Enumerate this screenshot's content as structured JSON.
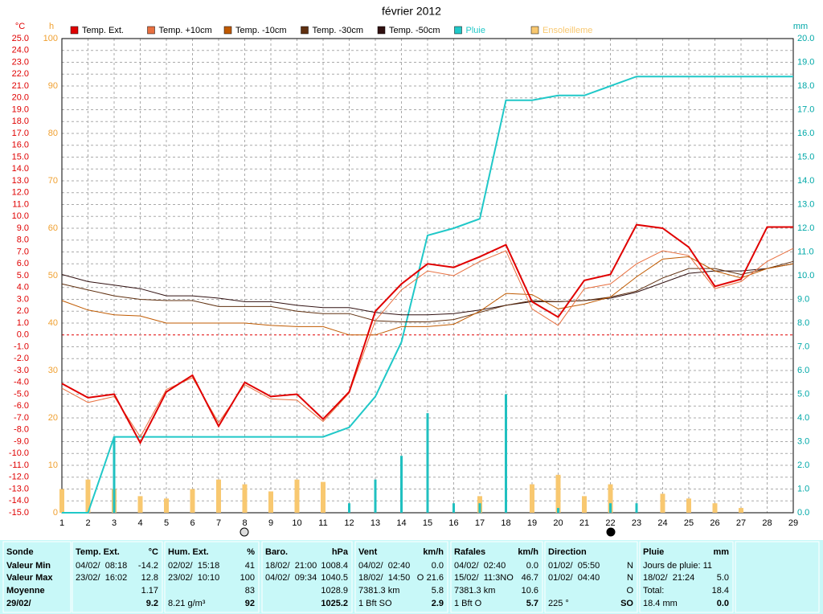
{
  "chart_data": {
    "type": "line",
    "title": "février 2012",
    "y_unit": "°C",
    "h_unit": "h",
    "y2_unit": "mm",
    "x": [
      1,
      2,
      3,
      4,
      5,
      6,
      7,
      8,
      9,
      10,
      11,
      12,
      13,
      14,
      15,
      16,
      17,
      18,
      19,
      20,
      21,
      22,
      23,
      24,
      25,
      26,
      27,
      28,
      29
    ],
    "xlim": [
      1,
      29
    ],
    "xticks": [
      1,
      2,
      3,
      4,
      5,
      6,
      7,
      8,
      9,
      10,
      11,
      12,
      13,
      14,
      15,
      16,
      17,
      18,
      19,
      20,
      21,
      22,
      23,
      24,
      25,
      26,
      27,
      28,
      29
    ],
    "ylim": [
      -15,
      25
    ],
    "yticks": [
      {
        "value": 25,
        "label": "25.0"
      },
      {
        "value": 24,
        "label": "24.0"
      },
      {
        "value": 23,
        "label": "23.0"
      },
      {
        "value": 22,
        "label": "22.0"
      },
      {
        "value": 21,
        "label": "21.0"
      },
      {
        "value": 20,
        "label": "20.0"
      },
      {
        "value": 19,
        "label": "19.0"
      },
      {
        "value": 18,
        "label": "18.0"
      },
      {
        "value": 17,
        "label": "17.0"
      },
      {
        "value": 16,
        "label": "16.0"
      },
      {
        "value": 15,
        "label": "15.0"
      },
      {
        "value": 14,
        "label": "14.0"
      },
      {
        "value": 13,
        "label": "13.0"
      },
      {
        "value": 12,
        "label": "12.0"
      },
      {
        "value": 11,
        "label": "11.0"
      },
      {
        "value": 10,
        "label": "10.0"
      },
      {
        "value": 9,
        "label": "9.0"
      },
      {
        "value": 8,
        "label": "8.0"
      },
      {
        "value": 7,
        "label": "7.0"
      },
      {
        "value": 6,
        "label": "6.0"
      },
      {
        "value": 5,
        "label": "5.0"
      },
      {
        "value": 4,
        "label": "4.0"
      },
      {
        "value": 3,
        "label": "3.0"
      },
      {
        "value": 2,
        "label": "2.0"
      },
      {
        "value": 1,
        "label": "1.0"
      },
      {
        "value": 0,
        "label": "0.0"
      },
      {
        "value": -1,
        "label": "-1.0"
      },
      {
        "value": -2,
        "label": "-2.0"
      },
      {
        "value": -3,
        "label": "-3.0"
      },
      {
        "value": -4,
        "label": "-4.0"
      },
      {
        "value": -5,
        "label": "-5.0"
      },
      {
        "value": -6,
        "label": "-6.0"
      },
      {
        "value": -7,
        "label": "-7.0"
      },
      {
        "value": -8,
        "label": "-8.0"
      },
      {
        "value": -9,
        "label": "-9.0"
      },
      {
        "value": -10,
        "label": "-10.0"
      },
      {
        "value": -11,
        "label": "-11.0"
      },
      {
        "value": -12,
        "label": "-12.0"
      },
      {
        "value": -13,
        "label": "-13.0"
      },
      {
        "value": -14,
        "label": "-14.0"
      },
      {
        "value": -15,
        "label": "-15.0"
      }
    ],
    "hlim": [
      0,
      100
    ],
    "hticks": [
      0,
      10,
      20,
      30,
      40,
      50,
      60,
      70,
      80,
      90,
      100
    ],
    "y2lim": [
      0,
      20
    ],
    "y2ticks": [
      {
        "value": 0,
        "label": "0.0"
      },
      {
        "value": 1,
        "label": "1.0"
      },
      {
        "value": 2,
        "label": "2.0"
      },
      {
        "value": 3,
        "label": "3.0"
      },
      {
        "value": 4,
        "label": "4.0"
      },
      {
        "value": 5,
        "label": "5.0"
      },
      {
        "value": 6,
        "label": "6.0"
      },
      {
        "value": 7,
        "label": "7.0"
      },
      {
        "value": 8,
        "label": "8.0"
      },
      {
        "value": 9,
        "label": "9.0"
      },
      {
        "value": 10,
        "label": "10.0"
      },
      {
        "value": 11,
        "label": "11.0"
      },
      {
        "value": 12,
        "label": "12.0"
      },
      {
        "value": 13,
        "label": "13.0"
      },
      {
        "value": 14,
        "label": "14.0"
      },
      {
        "value": 15,
        "label": "15.0"
      },
      {
        "value": 16,
        "label": "16.0"
      },
      {
        "value": 17,
        "label": "17.0"
      },
      {
        "value": 18,
        "label": "18.0"
      },
      {
        "value": 19,
        "label": "19.0"
      },
      {
        "value": 20,
        "label": "20.0"
      }
    ],
    "grid": true,
    "zero_line_color": "#e00000",
    "series": [
      {
        "name": "Temp. Ext.",
        "color": "#e00000",
        "width": 2,
        "values": [
          -4.1,
          -5.3,
          -5.0,
          -9.1,
          -4.8,
          -3.4,
          -7.7,
          -4.0,
          -5.2,
          -5.0,
          -7.1,
          -4.8,
          2.0,
          4.3,
          6.0,
          5.7,
          6.6,
          7.6,
          2.8,
          1.5,
          4.6,
          5.1,
          9.3,
          9.0,
          7.4,
          4.1,
          4.7,
          9.1,
          9.1
        ]
      },
      {
        "name": "Temp. +10cm",
        "color": "#e87040",
        "width": 1,
        "values": [
          -4.5,
          -5.7,
          -5.2,
          -8.6,
          -4.6,
          -3.6,
          -7.4,
          -4.2,
          -5.4,
          -5.5,
          -7.3,
          -4.9,
          1.2,
          3.8,
          5.4,
          5.0,
          6.2,
          7.1,
          2.2,
          0.8,
          3.9,
          4.3,
          6.0,
          7.1,
          6.7,
          3.9,
          4.5,
          6.2,
          7.3
        ]
      },
      {
        "name": "Temp. -10cm",
        "color": "#c05a00",
        "width": 1,
        "values": [
          2.9,
          2.1,
          1.7,
          1.6,
          1.0,
          1.0,
          1.0,
          1.0,
          0.8,
          0.7,
          0.7,
          0.0,
          0.0,
          0.7,
          0.7,
          0.9,
          2.0,
          3.5,
          3.4,
          2.2,
          2.6,
          3.2,
          4.9,
          6.4,
          6.6,
          5.4,
          4.8,
          5.6,
          6.0
        ]
      },
      {
        "name": "Temp. -30cm",
        "color": "#603010",
        "width": 1,
        "values": [
          4.3,
          3.8,
          3.3,
          3.0,
          2.9,
          2.9,
          2.4,
          2.4,
          2.4,
          2.0,
          1.8,
          1.8,
          1.2,
          1.1,
          1.1,
          1.3,
          1.9,
          2.5,
          2.9,
          2.8,
          2.9,
          3.2,
          3.7,
          4.8,
          5.6,
          5.6,
          5.1,
          5.6,
          6.2
        ]
      },
      {
        "name": "Temp. -50cm",
        "color": "#301010",
        "width": 1,
        "values": [
          5.1,
          4.5,
          4.2,
          3.9,
          3.3,
          3.3,
          3.1,
          2.8,
          2.8,
          2.5,
          2.3,
          2.3,
          1.9,
          1.7,
          1.7,
          1.8,
          2.1,
          2.5,
          2.8,
          2.8,
          2.9,
          3.1,
          3.6,
          4.4,
          5.2,
          5.4,
          5.4,
          5.6,
          6.0
        ]
      },
      {
        "name": "Pluie",
        "color": "#20c8c8",
        "width": 2,
        "axis": "y2",
        "values": [
          0,
          0,
          3.2,
          3.2,
          3.2,
          3.2,
          3.2,
          3.2,
          3.2,
          3.2,
          3.2,
          3.6,
          4.9,
          7.2,
          11.7,
          12.0,
          12.4,
          17.4,
          17.4,
          17.6,
          17.6,
          18.0,
          18.4,
          18.4,
          18.4,
          18.4,
          18.4,
          18.4,
          18.4
        ]
      },
      {
        "name": "Ensoleilleme",
        "color": "#f8c870",
        "kind": "bar",
        "axis": "h",
        "values": [
          5,
          7,
          5,
          3.5,
          3,
          5,
          7,
          6,
          4.5,
          7,
          6.5,
          0,
          0,
          0,
          0,
          0,
          3.5,
          0,
          6,
          8,
          3.5,
          6,
          0,
          4,
          3,
          2,
          1,
          0,
          0
        ]
      }
    ],
    "rain_daily": {
      "color": "#20c0c0",
      "axis": "y2",
      "values": [
        0,
        0,
        3.2,
        0,
        0,
        0,
        0,
        0,
        0,
        0,
        0,
        0.4,
        1.4,
        2.4,
        4.2,
        0.4,
        0.4,
        5.0,
        0,
        0.2,
        0,
        0.4,
        0.4,
        0,
        0,
        0,
        0,
        0,
        0
      ]
    }
  },
  "table": {
    "columns": [
      {
        "header": {
          "left": "Sonde"
        },
        "bold_all": true,
        "rows": [
          {
            "left": "Valeur Min"
          },
          {
            "left": "Valeur Max"
          },
          {
            "left": "Moyenne"
          },
          {
            "left": "29/02/"
          }
        ]
      },
      {
        "header": {
          "left": "Temp. Ext.",
          "right": "°C"
        },
        "rows": [
          {
            "left": "04/02/  08:18",
            "right": "-14.2"
          },
          {
            "left": "23/02/  16:02",
            "right": "12.8"
          },
          {
            "right": "1.17"
          },
          {
            "right": "9.2"
          }
        ]
      },
      {
        "header": {
          "left": "Hum. Ext.",
          "right": "%"
        },
        "rows": [
          {
            "left": "02/02/  15:18",
            "right": "41"
          },
          {
            "left": "23/02/  10:10",
            "right": "100"
          },
          {
            "right": "83"
          },
          {
            "left": "8.21 g/m³",
            "right": "92"
          }
        ]
      },
      {
        "header": {
          "left": "Baro.",
          "right": "hPa"
        },
        "rows": [
          {
            "left": "18/02/  21:00",
            "right": "1008.4"
          },
          {
            "left": "04/02/  09:34",
            "right": "1040.5"
          },
          {
            "right": "1028.9"
          },
          {
            "right": "1025.2"
          }
        ]
      },
      {
        "header": {
          "left": "Vent",
          "right": "km/h"
        },
        "rows": [
          {
            "left": "04/02/  02:40",
            "right": "0.0"
          },
          {
            "left": "18/02/  14:50",
            "mid": "O",
            "right": "21.6"
          },
          {
            "left": "7381.3 km",
            "right": "5.8"
          },
          {
            "left": "1 Bft SO",
            "right": "2.9"
          }
        ]
      },
      {
        "header": {
          "left": "Rafales",
          "right": "km/h"
        },
        "rows": [
          {
            "left": "04/02/  02:40",
            "right": "0.0"
          },
          {
            "left": "15/02/  11:3NO",
            "right": "46.7"
          },
          {
            "left": "7381.3 km",
            "right": "10.6"
          },
          {
            "left": "1 Bft O",
            "right": "5.7"
          }
        ]
      },
      {
        "header": {
          "left": "Direction"
        },
        "rows": [
          {
            "left": "01/02/  05:50",
            "right": "N"
          },
          {
            "left": "01/02/  04:40",
            "right": "N"
          },
          {
            "right": "O"
          },
          {
            "left": "225 °",
            "right": "SO"
          }
        ]
      },
      {
        "header": {
          "left": "Pluie",
          "right": "mm"
        },
        "rows": [
          {
            "left": "Jours de pluie: 11"
          },
          {
            "left": "18/02/  21:24",
            "right": "5.0"
          },
          {
            "left": "Total:",
            "right": "18.4"
          },
          {
            "left": "18.4 mm",
            "right": "0.0"
          }
        ]
      }
    ]
  }
}
